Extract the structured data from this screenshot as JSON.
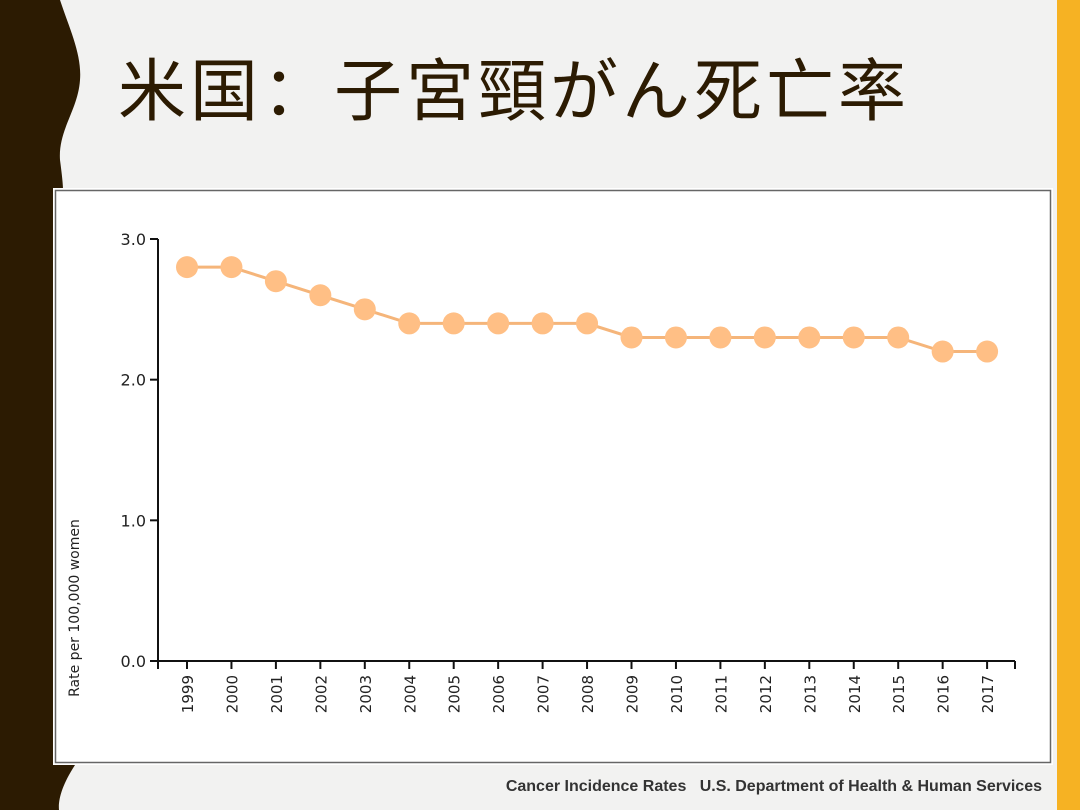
{
  "slide": {
    "title": "米国：子宮頸がん死亡率",
    "source": "Cancer Incidence Rates   U.S. Department of Health & Human Services",
    "colors": {
      "dark": "#2c1b02",
      "accent": "#f6b223",
      "series": "#ffbf85"
    }
  },
  "chart_data": {
    "type": "line",
    "title": "",
    "xlabel": "",
    "ylabel": "Rate per 100,000 women",
    "x": [
      "1999",
      "2000",
      "2001",
      "2002",
      "2003",
      "2004",
      "2005",
      "2006",
      "2007",
      "2008",
      "2009",
      "2010",
      "2011",
      "2012",
      "2013",
      "2014",
      "2015",
      "2016",
      "2017"
    ],
    "values": [
      2.8,
      2.8,
      2.7,
      2.6,
      2.5,
      2.4,
      2.4,
      2.4,
      2.4,
      2.4,
      2.3,
      2.3,
      2.3,
      2.3,
      2.3,
      2.3,
      2.3,
      2.2,
      2.2
    ],
    "ylim": [
      0,
      3.0
    ],
    "yticks": [
      "0.0",
      "1.0",
      "2.0",
      "3.0"
    ],
    "grid": false,
    "legend": "none"
  }
}
